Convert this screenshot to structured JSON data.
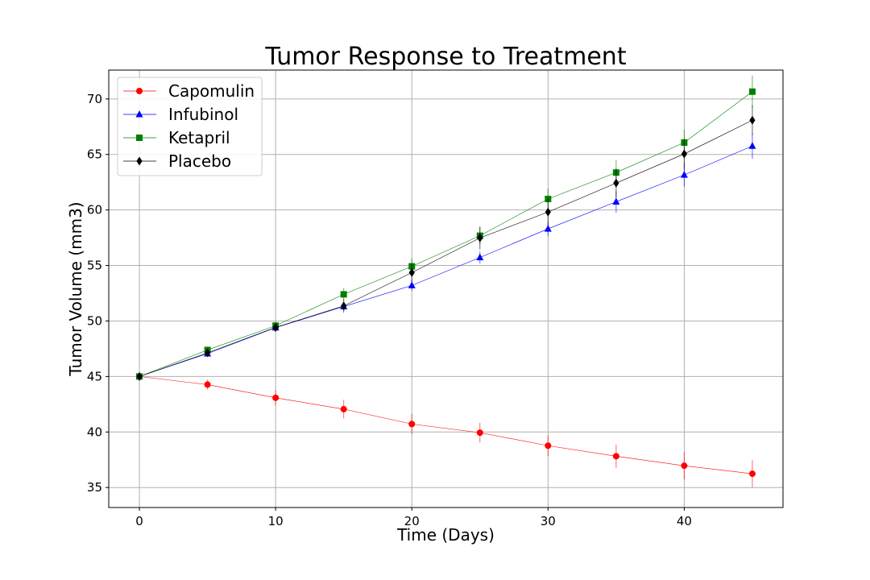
{
  "chart_data": {
    "type": "line",
    "title": "Tumor Response to Treatment",
    "xlabel": "Time (Days)",
    "ylabel": "Tumor Volume (mm3)",
    "xlim": [
      -2.25,
      47.25
    ],
    "ylim": [
      33.2,
      72.6
    ],
    "x_ticks": [
      0,
      10,
      20,
      30,
      40
    ],
    "y_ticks": [
      35,
      40,
      45,
      50,
      55,
      60,
      65,
      70
    ],
    "grid": true,
    "legend_position": "top-left",
    "x": [
      0,
      5,
      10,
      15,
      20,
      25,
      30,
      35,
      40,
      45
    ],
    "series": [
      {
        "name": "Capomulin",
        "color": "#ff0000",
        "marker": "circle",
        "values": [
          45.0,
          44.27,
          43.08,
          42.06,
          40.72,
          39.94,
          38.77,
          37.82,
          36.96,
          36.24
        ],
        "errors": [
          0.0,
          0.45,
          0.7,
          0.84,
          0.91,
          0.89,
          0.93,
          1.05,
          1.22,
          1.22
        ]
      },
      {
        "name": "Infubinol",
        "color": "#0000ff",
        "marker": "triangle",
        "values": [
          45.0,
          47.06,
          49.4,
          51.3,
          53.2,
          55.72,
          58.3,
          60.74,
          63.16,
          65.76
        ],
        "errors": [
          0.0,
          0.24,
          0.28,
          0.36,
          0.48,
          0.55,
          0.63,
          0.98,
          1.06,
          1.14
        ]
      },
      {
        "name": "Ketapril",
        "color": "#008000",
        "marker": "square",
        "values": [
          45.0,
          47.39,
          49.58,
          52.4,
          54.92,
          57.68,
          60.99,
          63.37,
          66.07,
          70.66
        ],
        "errors": [
          0.0,
          0.26,
          0.36,
          0.58,
          0.73,
          0.76,
          0.93,
          1.13,
          1.16,
          1.45
        ]
      },
      {
        "name": "Placebo",
        "color": "#000000",
        "marker": "diamond",
        "values": [
          45.0,
          47.13,
          49.42,
          51.36,
          54.36,
          57.48,
          59.81,
          62.42,
          65.05,
          68.08
        ],
        "errors": [
          0.0,
          0.22,
          0.4,
          0.61,
          0.84,
          1.03,
          1.22,
          1.29,
          1.37,
          1.35
        ]
      }
    ]
  }
}
